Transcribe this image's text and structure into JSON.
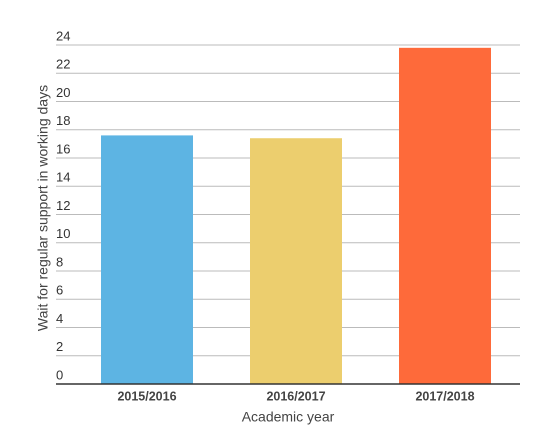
{
  "chart_data": {
    "type": "bar",
    "x_label": "Academic year",
    "y_label": "Wait for regular support in working days",
    "categories": [
      "2015/2016",
      "2016/2017",
      "2017/2018"
    ],
    "values": [
      17.6,
      17.4,
      23.8
    ],
    "colors": [
      "#5db4e3",
      "#ecce6e",
      "#fe6a3a"
    ],
    "ylim": [
      0,
      24
    ],
    "yticks": [
      0,
      2,
      4,
      6,
      8,
      10,
      12,
      14,
      16,
      18,
      20,
      22,
      24
    ],
    "grid": true
  }
}
